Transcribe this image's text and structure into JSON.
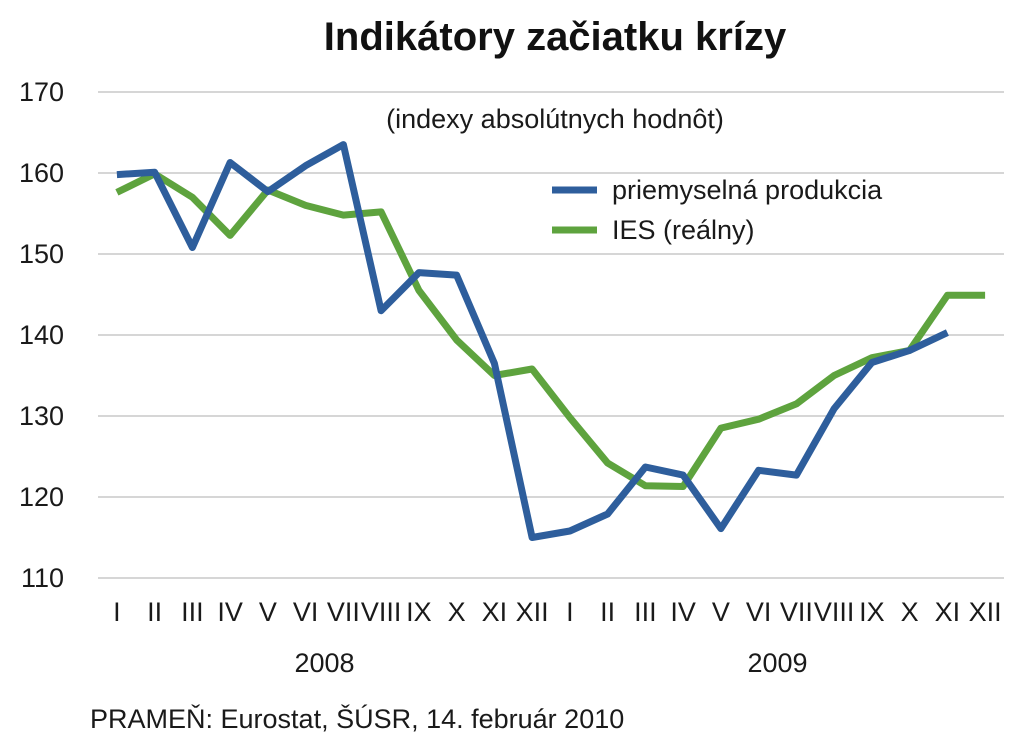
{
  "chart_data": {
    "type": "line",
    "title": "Indikátory začiatku krízy",
    "subtitle": "(indexy absolútnych hodnôt)",
    "source": "PRAMEŇ: Eurostat, ŠÚSR, 14. február 2010",
    "ylim": [
      110,
      170
    ],
    "yticks": [
      110,
      120,
      130,
      140,
      150,
      160,
      170
    ],
    "grid": true,
    "legend_position": "top-right",
    "categories": [
      "I",
      "II",
      "III",
      "IV",
      "V",
      "VI",
      "VII",
      "VIII",
      "IX",
      "X",
      "XI",
      "XII",
      "I",
      "II",
      "III",
      "IV",
      "V",
      "VI",
      "VII",
      "VIII",
      "IX",
      "X",
      "XI",
      "XII"
    ],
    "years": [
      {
        "label": "2008",
        "from": 0,
        "to": 11
      },
      {
        "label": "2009",
        "from": 12,
        "to": 23
      }
    ],
    "series": [
      {
        "name": "priemyselná produkcia",
        "color": "#2e5e9c",
        "values": [
          159.8,
          160.1,
          150.8,
          161.3,
          157.7,
          160.9,
          163.5,
          143.0,
          147.7,
          147.4,
          136.5,
          115.0,
          115.8,
          117.9,
          123.7,
          122.7,
          116.1,
          123.3,
          122.7,
          130.9,
          136.6,
          138.1,
          140.3,
          null
        ]
      },
      {
        "name": "IES (reálny)",
        "color": "#5ea33e",
        "values": [
          157.6,
          159.9,
          157.0,
          152.3,
          157.9,
          156.0,
          154.8,
          155.2,
          145.5,
          139.4,
          135.0,
          135.8,
          129.8,
          124.2,
          121.4,
          121.3,
          128.5,
          129.6,
          131.5,
          135.0,
          137.2,
          138.1,
          144.9,
          144.9
        ]
      }
    ]
  }
}
